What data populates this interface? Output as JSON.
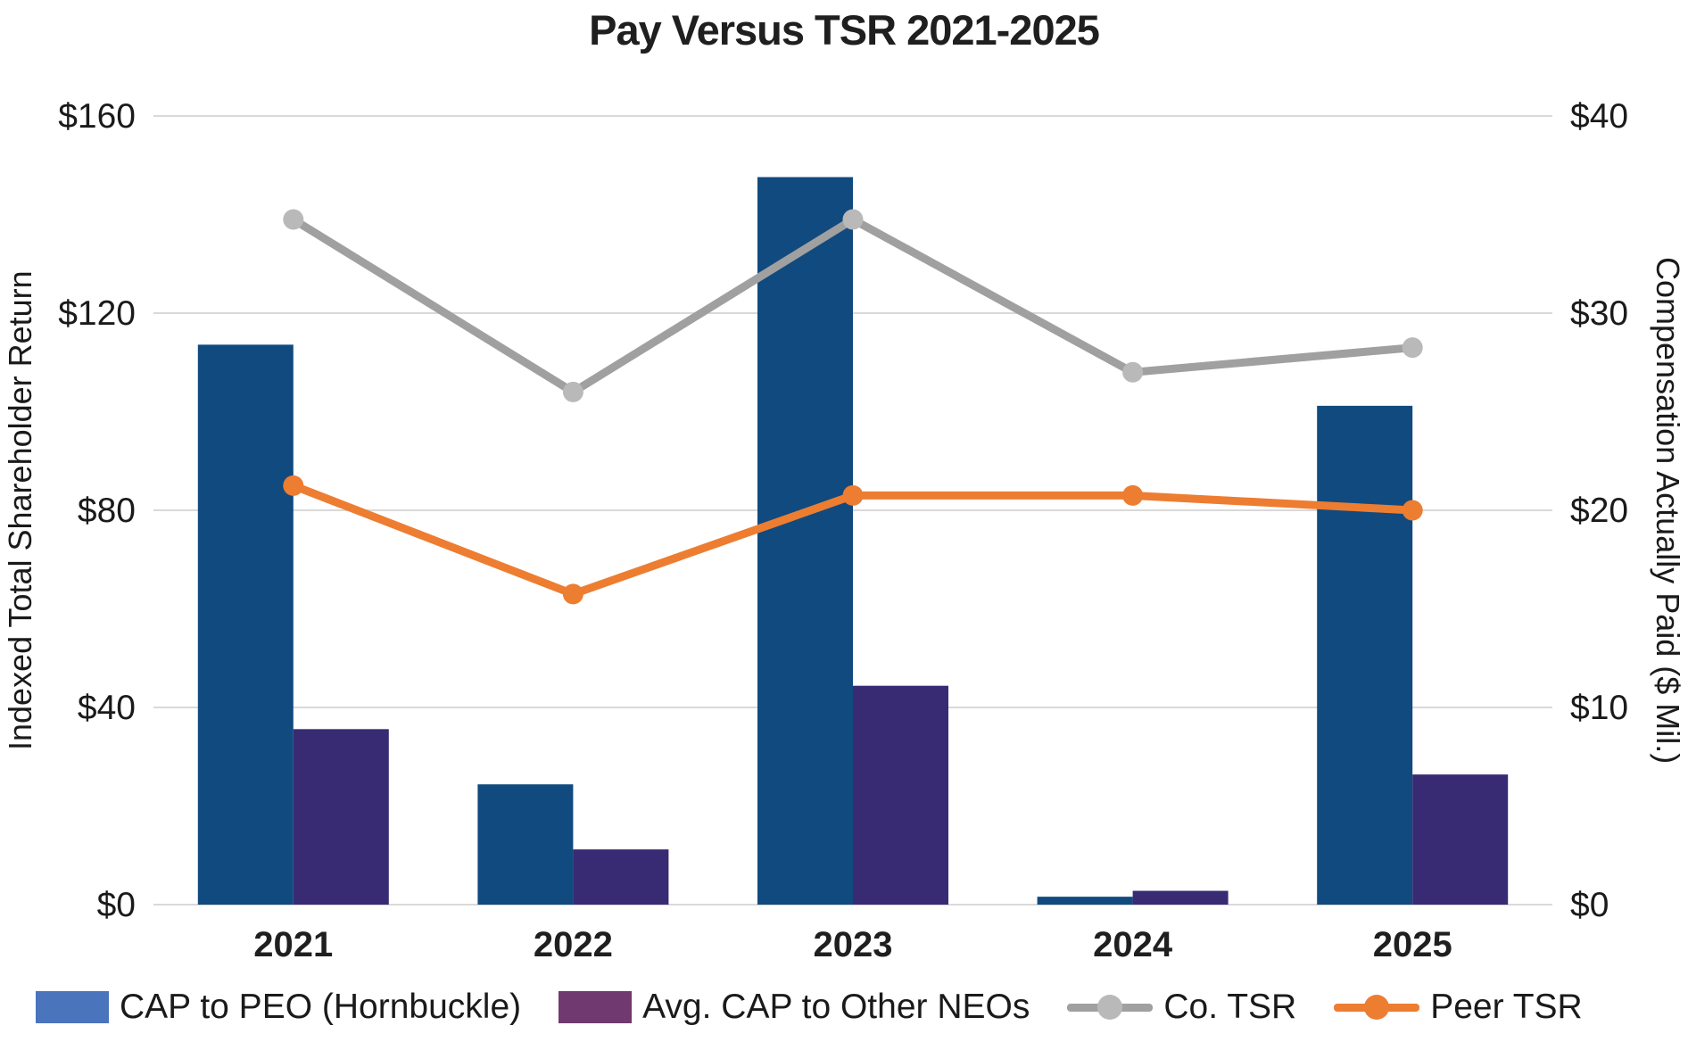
{
  "chart_data": {
    "type": "combo-bar-line",
    "title": "Pay Versus TSR 2021-2025",
    "categories": [
      "2021",
      "2022",
      "2023",
      "2024",
      "2025"
    ],
    "left_axis": {
      "label": "Indexed Total Shareholder Return",
      "ticks_top_to_bottom": [
        "$160",
        "$120",
        "$80",
        "$40",
        "$0"
      ],
      "range": [
        0,
        160
      ],
      "tick_step": 40
    },
    "right_axis": {
      "label": "Compensation Actually Paid ($ Mil.)",
      "ticks_top_to_bottom": [
        "$40",
        "$30",
        "$20",
        "$10",
        "$0"
      ],
      "range": [
        0,
        40
      ],
      "tick_step": 10
    },
    "series": [
      {
        "name": "CAP to PEO (Hornbuckle)",
        "type": "bar",
        "axis": "right",
        "color": "#114A7E",
        "legend_color": "#4A74BC",
        "values": [
          28.4,
          6.1,
          36.9,
          0.4,
          25.3
        ]
      },
      {
        "name": "Avg. CAP to Other NEOs",
        "type": "bar",
        "axis": "right",
        "color": "#382B73",
        "legend_color": "#70396F",
        "values": [
          8.9,
          2.8,
          11.1,
          0.7,
          6.6
        ]
      },
      {
        "name": "Co. TSR",
        "type": "line",
        "axis": "left",
        "color": "#A0A0A0",
        "marker_color": "#B9B9B9",
        "values": [
          139,
          104,
          139,
          108,
          113
        ]
      },
      {
        "name": "Peer TSR",
        "type": "line",
        "axis": "left",
        "color": "#ED7D31",
        "marker_color": "#ED7D31",
        "values": [
          85,
          63,
          83,
          83,
          80
        ]
      }
    ],
    "grid": true,
    "grid_color": "#D9D9D9",
    "text_color": "#1A1A1A",
    "legend_position": "bottom"
  }
}
